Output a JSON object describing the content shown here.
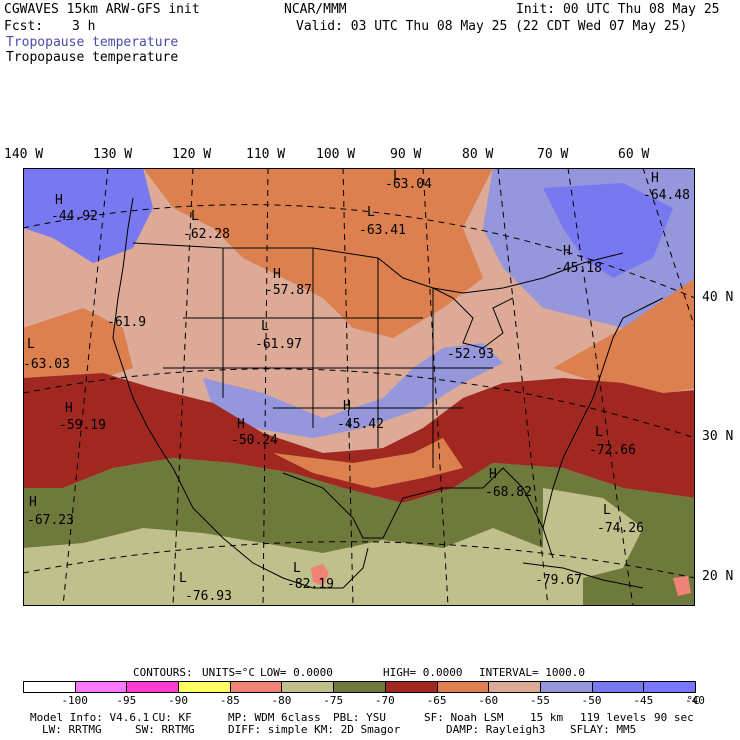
{
  "header": {
    "model": "CGWAVES 15km ARW-GFS init",
    "fcst_label": "Fcst:",
    "fcst_value": "3 h",
    "center": "NCAR/MMM",
    "init": "Init: 00 UTC Thu 08 May 25",
    "valid": "Valid: 03 UTC Thu 08 May 25 (22 CDT Wed 07 May 25)",
    "field_1": "Tropopause temperature",
    "field_2": "Tropopause temperature"
  },
  "axes": {
    "longitude_labels": [
      "140 W",
      "130 W",
      "120 W",
      "110 W",
      "100 W",
      "90 W",
      "80 W",
      "70 W",
      "60 W"
    ],
    "latitude_labels": [
      "40 N",
      "30 N",
      "20 N"
    ]
  },
  "centers": [
    {
      "type": "H",
      "value": "-44.92"
    },
    {
      "type": "L",
      "value": "-62.28"
    },
    {
      "type": "L",
      "value": "-63.04"
    },
    {
      "type": "L",
      "value": "-63.41"
    },
    {
      "type": "H",
      "value": "-64.48"
    },
    {
      "type": "H",
      "value": "-45.18"
    },
    {
      "type": "H",
      "value": "-57.87"
    },
    {
      "type": "",
      "value": "-61.9"
    },
    {
      "type": "L",
      "value": "-61.97"
    },
    {
      "type": "L",
      "value": "-63.03"
    },
    {
      "type": "",
      "value": "-52.93"
    },
    {
      "type": "H",
      "value": "-59.19"
    },
    {
      "type": "H",
      "value": "-50.24"
    },
    {
      "type": "H",
      "value": "-45.42"
    },
    {
      "type": "L",
      "value": "-72.66"
    },
    {
      "type": "H",
      "value": "-68.82"
    },
    {
      "type": "H",
      "value": "-67.23"
    },
    {
      "type": "L",
      "value": "-74.26"
    },
    {
      "type": "L",
      "value": "-76.93"
    },
    {
      "type": "L",
      "value": "-82.19"
    },
    {
      "type": "",
      "value": "-79.67"
    }
  ],
  "contour_info": {
    "label": "CONTOURS:",
    "units": "UNITS=°C",
    "low": "LOW= 0.0000",
    "high": "HIGH= 0.0000",
    "interval": "INTERVAL= 1000.0"
  },
  "legend": {
    "ticks": [
      "-100",
      "-95",
      "-90",
      "-85",
      "-80",
      "-75",
      "-70",
      "-65",
      "-60",
      "-55",
      "-50",
      "-45",
      "-40"
    ],
    "unit": "°C",
    "colors": [
      "#ffffff",
      "#ff78ff",
      "#ff3cd2",
      "#ffff64",
      "#f08278",
      "#c0c08c",
      "#6e7a3c",
      "#a02820",
      "#dc8050",
      "#dcaa96",
      "#9696dc",
      "#7878f0",
      "#7878ff"
    ]
  },
  "footer": {
    "line1_a": "Model Info: V4.6.1",
    "line1_b": "CU: KF",
    "line1_c": "MP: WDM 6class",
    "line1_d": "PBL: YSU",
    "line1_e": "SF: Noah LSM",
    "line1_f": "15 km",
    "line1_g": "119 levels",
    "line1_h": "90 sec",
    "line2_a": "LW: RRTMG",
    "line2_b": "SW: RRTMG",
    "line2_c": "DIFF: simple KM: 2D Smagor",
    "line2_d": "DAMP: Rayleigh3",
    "line2_e": "SFLAY: MM5"
  }
}
